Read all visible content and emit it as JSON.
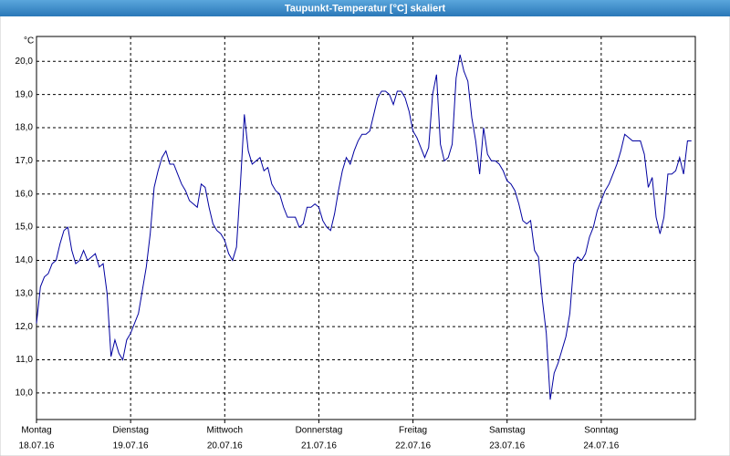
{
  "chart_data": {
    "type": "line",
    "title": "Taupunkt-Temperatur [°C] skaliert",
    "y_unit": "°C",
    "x": [
      0,
      1,
      2,
      3,
      4,
      5,
      6,
      7,
      8,
      9,
      10,
      11,
      12,
      13,
      14,
      15,
      16,
      17,
      18,
      19,
      20,
      21,
      22,
      23,
      24,
      25,
      26,
      27,
      28,
      29,
      30,
      31,
      32,
      33,
      34,
      35,
      36,
      37,
      38,
      39,
      40,
      41,
      42,
      43,
      44,
      45,
      46,
      47,
      48,
      49,
      50,
      51,
      52,
      53,
      54,
      55,
      56,
      57,
      58,
      59,
      60,
      61,
      62,
      63,
      64,
      65,
      66,
      67,
      68,
      69,
      70,
      71,
      72,
      73,
      74,
      75,
      76,
      77,
      78,
      79,
      80,
      81,
      82,
      83,
      84,
      85,
      86,
      87,
      88,
      89,
      90,
      91,
      92,
      93,
      94,
      95,
      96,
      97,
      98,
      99,
      100,
      101,
      102,
      103,
      104,
      105,
      106,
      107,
      108,
      109,
      110,
      111,
      112,
      113,
      114,
      115,
      116,
      117,
      118,
      119,
      120,
      121,
      122,
      123,
      124,
      125,
      126,
      127,
      128,
      129,
      130,
      131,
      132,
      133,
      134,
      135,
      136,
      137,
      138,
      139,
      140,
      141,
      142,
      143,
      144,
      145,
      146,
      147,
      148,
      149,
      150,
      151,
      152,
      153,
      154,
      155,
      156,
      157,
      158,
      159,
      160,
      161,
      162,
      163,
      164,
      165,
      166,
      167
    ],
    "series": [
      {
        "name": "Taupunkt-Temperatur",
        "color": "#0000a0",
        "values": [
          12.1,
          13.2,
          13.5,
          13.6,
          13.9,
          14.0,
          14.5,
          14.9,
          15.0,
          14.3,
          13.9,
          14.0,
          14.3,
          14.0,
          14.1,
          14.2,
          13.8,
          13.9,
          13.0,
          11.1,
          11.6,
          11.2,
          11.0,
          11.6,
          11.8,
          12.1,
          12.4,
          13.1,
          13.8,
          14.8,
          16.2,
          16.7,
          17.1,
          17.3,
          16.9,
          16.9,
          16.6,
          16.3,
          16.1,
          15.8,
          15.7,
          15.6,
          16.3,
          16.2,
          15.6,
          15.1,
          14.9,
          14.8,
          14.6,
          14.2,
          14.0,
          14.4,
          16.3,
          18.4,
          17.3,
          16.9,
          17.0,
          17.1,
          16.7,
          16.8,
          16.3,
          16.1,
          16.0,
          15.6,
          15.3,
          15.3,
          15.3,
          15.0,
          15.1,
          15.6,
          15.6,
          15.7,
          15.6,
          15.2,
          15.0,
          14.9,
          15.4,
          16.1,
          16.7,
          17.1,
          16.9,
          17.3,
          17.6,
          17.8,
          17.8,
          17.9,
          18.4,
          18.9,
          19.1,
          19.1,
          19.0,
          18.7,
          19.1,
          19.1,
          18.9,
          18.5,
          17.9,
          17.7,
          17.4,
          17.1,
          17.4,
          19.0,
          19.6,
          17.5,
          17.0,
          17.1,
          17.5,
          19.5,
          20.2,
          19.7,
          19.4,
          18.3,
          17.6,
          16.6,
          18.0,
          17.2,
          17.0,
          17.0,
          16.9,
          16.7,
          16.4,
          16.3,
          16.1,
          15.7,
          15.2,
          15.1,
          15.2,
          14.3,
          14.1,
          12.8,
          11.8,
          9.8,
          10.6,
          10.9,
          11.3,
          11.7,
          12.4,
          13.9,
          14.1,
          14.0,
          14.2,
          14.7,
          15.0,
          15.5,
          15.8,
          16.1,
          16.3,
          16.6,
          16.9,
          17.3,
          17.8,
          17.7,
          17.6,
          17.6,
          17.6,
          17.2,
          16.2,
          16.5,
          15.3,
          14.8,
          15.3,
          16.6,
          16.6,
          16.7,
          17.1,
          16.6,
          17.6,
          17.6
        ]
      }
    ],
    "xlim": [
      0,
      168
    ],
    "xticks": [
      {
        "value": 0,
        "label": "Montag",
        "date": "18.07.16"
      },
      {
        "value": 24,
        "label": "Dienstag",
        "date": "19.07.16"
      },
      {
        "value": 48,
        "label": "Mittwoch",
        "date": "20.07.16"
      },
      {
        "value": 72,
        "label": "Donnerstag",
        "date": "21.07.16"
      },
      {
        "value": 96,
        "label": "Freitag",
        "date": "22.07.16"
      },
      {
        "value": 120,
        "label": "Samstag",
        "date": "23.07.16"
      },
      {
        "value": 144,
        "label": "Sonntag",
        "date": "24.07.16"
      }
    ],
    "ylim": [
      9.2,
      20.75
    ],
    "yticks": [
      {
        "value": 10,
        "label": "10,0"
      },
      {
        "value": 11,
        "label": "11,0"
      },
      {
        "value": 12,
        "label": "12,0"
      },
      {
        "value": 13,
        "label": "13,0"
      },
      {
        "value": 14,
        "label": "14,0"
      },
      {
        "value": 15,
        "label": "15,0"
      },
      {
        "value": 16,
        "label": "16,0"
      },
      {
        "value": 17,
        "label": "17,0"
      },
      {
        "value": 18,
        "label": "18,0"
      },
      {
        "value": 19,
        "label": "19,0"
      },
      {
        "value": 20,
        "label": "20,0"
      }
    ],
    "grid": true
  }
}
